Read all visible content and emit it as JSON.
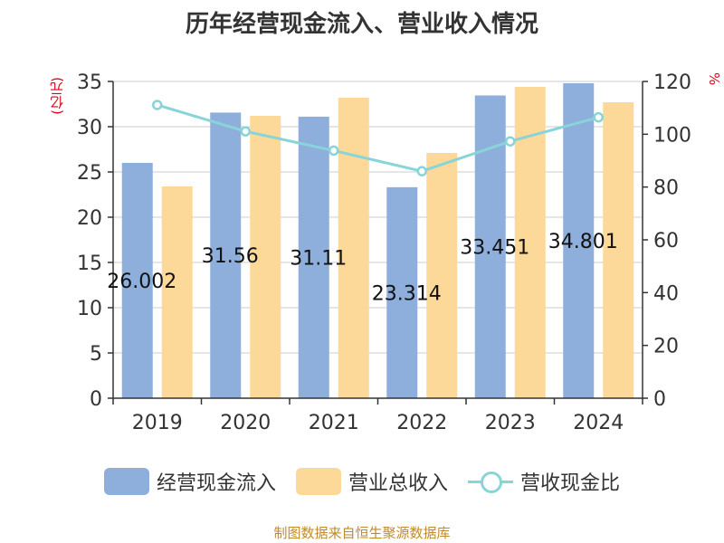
{
  "chart_data": {
    "type": "bar",
    "title": "历年经营现金流入、营业收入情况",
    "ylabel_left": "(亿元)",
    "ylabel_right": "%",
    "categories": [
      "2019",
      "2020",
      "2021",
      "2022",
      "2023",
      "2024"
    ],
    "series": [
      {
        "name": "经营现金流入",
        "type": "bar",
        "axis": "left",
        "color": "#8eaedb",
        "values": [
          26.002,
          31.56,
          31.11,
          23.314,
          33.451,
          34.801
        ]
      },
      {
        "name": "营业总收入",
        "type": "bar",
        "axis": "left",
        "color": "#fcd899",
        "values": [
          23.4,
          31.2,
          33.2,
          27.1,
          34.4,
          32.7
        ]
      },
      {
        "name": "营收现金比",
        "type": "line",
        "axis": "right",
        "color": "#88d4d9",
        "values": [
          111.1,
          101.1,
          93.8,
          86.0,
          97.3,
          106.4
        ]
      }
    ],
    "data_labels": [
      "26.002",
      "31.56",
      "31.11",
      "23.314",
      "33.451",
      "34.801"
    ],
    "ylim_left": [
      0,
      35
    ],
    "yticks_left": [
      0,
      5,
      10,
      15,
      20,
      25,
      30,
      35
    ],
    "ylim_right": [
      0,
      120
    ],
    "yticks_right": [
      0,
      20,
      40,
      60,
      80,
      100,
      120
    ],
    "grid": true,
    "legend_position": "bottom"
  },
  "source": "制图数据来自恒生聚源数据库"
}
